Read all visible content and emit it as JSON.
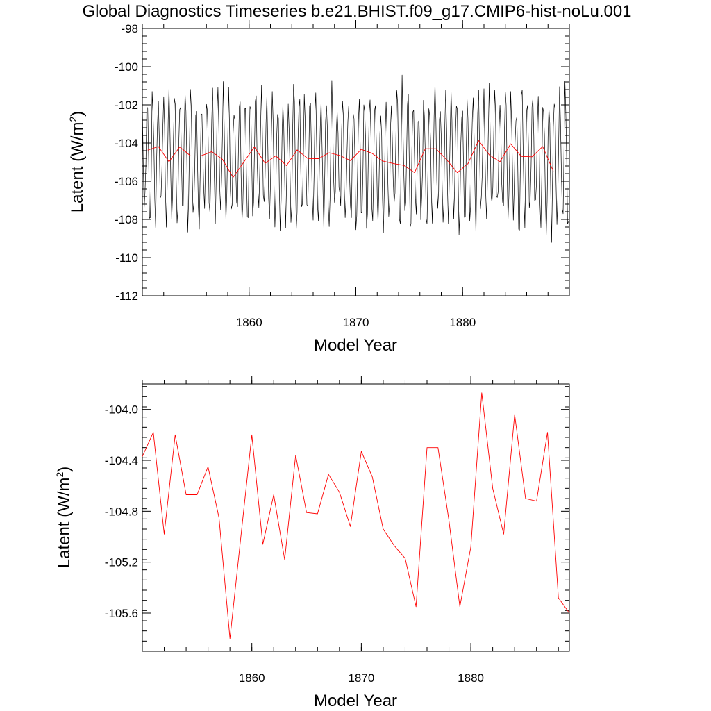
{
  "title": "Global Diagnostics Timeseries b.e21.BHIST.f09_g17.CMIP6-hist-noLu.001",
  "colors": {
    "monthly": "#000000",
    "annual": "#ff0000",
    "axis": "#000000"
  },
  "chart_data": [
    {
      "type": "line",
      "xlabel": "Model Year",
      "ylabel": "Latent (W/m2)",
      "ylabel_main": "Latent (W/m",
      "ylabel_sup": "2",
      "ylabel_close": ")",
      "xlim": [
        1850,
        1890
      ],
      "ylim": [
        -112,
        -98
      ],
      "xticks": [
        1860,
        1870,
        1880
      ],
      "xtick_labels": [
        "1860",
        "1870",
        "1880"
      ],
      "yticks": [
        -112,
        -110,
        -108,
        -106,
        -104,
        -102,
        -100,
        -98
      ],
      "ytick_labels": [
        "-112",
        "-110",
        "-108",
        "-106",
        "-104",
        "-102",
        "-100",
        "-98"
      ],
      "series": [
        {
          "name": "monthly",
          "color": "#000000",
          "generated": "seasonal cycle: mean -104.8, amplitude ~3.2 W/m2, 12 samples per year, 1850-1890",
          "x": [],
          "values": []
        },
        {
          "name": "annual",
          "color": "#ff0000",
          "x": [
            1850.5,
            1851.5,
            1852.5,
            1853.5,
            1854.5,
            1855.5,
            1856.5,
            1857.5,
            1858.5,
            1859.5,
            1860.5,
            1861.5,
            1862.5,
            1863.5,
            1864.5,
            1865.5,
            1866.5,
            1867.5,
            1868.5,
            1869.5,
            1870.5,
            1871.5,
            1872.5,
            1873.5,
            1874.5,
            1875.5,
            1876.5,
            1877.5,
            1878.5,
            1879.5,
            1880.5,
            1881.5,
            1882.5,
            1883.5,
            1884.5,
            1885.5,
            1886.5,
            1887.5,
            1888.5
          ],
          "values": [
            -104.37,
            -104.18,
            -104.98,
            -104.2,
            -104.67,
            -104.67,
            -104.45,
            -104.85,
            -105.8,
            -105.0,
            -104.2,
            -105.06,
            -104.67,
            -105.18,
            -104.36,
            -104.81,
            -104.82,
            -104.51,
            -104.65,
            -104.92,
            -104.33,
            -104.53,
            -104.94,
            -105.07,
            -105.17,
            -105.55,
            -104.3,
            -104.3,
            -104.87,
            -105.55,
            -105.08,
            -103.87,
            -104.62,
            -104.98,
            -104.04,
            -104.7,
            -104.72,
            -104.18,
            -105.48
          ]
        }
      ]
    },
    {
      "type": "line",
      "xlabel": "Model Year",
      "ylabel": "Latent (W/m2)",
      "ylabel_main": "Latent (W/m",
      "ylabel_sup": "2",
      "ylabel_close": ")",
      "xlim": [
        1850,
        1889
      ],
      "ylim": [
        -105.9,
        -103.8
      ],
      "xticks": [
        1860,
        1870,
        1880
      ],
      "xtick_labels": [
        "1860",
        "1870",
        "1880"
      ],
      "yticks": [
        -105.6,
        -105.2,
        -104.8,
        -104.4,
        -104.0
      ],
      "ytick_labels": [
        "-105.6",
        "-105.2",
        "-104.8",
        "-104.4",
        "-104.0"
      ],
      "series": [
        {
          "name": "annual",
          "color": "#ff0000",
          "x": [
            1850.0,
            1851.0,
            1852.0,
            1853.0,
            1854.0,
            1855.0,
            1856.0,
            1857.0,
            1858.0,
            1859.0,
            1860.0,
            1861.0,
            1862.0,
            1863.0,
            1864.0,
            1865.0,
            1866.0,
            1867.0,
            1868.0,
            1869.0,
            1870.0,
            1871.0,
            1872.0,
            1873.0,
            1874.0,
            1875.0,
            1876.0,
            1877.0,
            1878.0,
            1879.0,
            1880.0,
            1881.0,
            1882.0,
            1883.0,
            1884.0,
            1885.0,
            1886.0,
            1887.0,
            1888.0,
            1889.0
          ],
          "values": [
            -104.37,
            -104.18,
            -104.98,
            -104.2,
            -104.67,
            -104.67,
            -104.45,
            -104.85,
            -105.8,
            -105.0,
            -104.2,
            -105.06,
            -104.67,
            -105.18,
            -104.36,
            -104.81,
            -104.82,
            -104.51,
            -104.65,
            -104.92,
            -104.33,
            -104.53,
            -104.94,
            -105.07,
            -105.17,
            -105.55,
            -104.3,
            -104.3,
            -104.87,
            -105.55,
            -105.08,
            -103.87,
            -104.62,
            -104.98,
            -104.04,
            -104.7,
            -104.72,
            -104.18,
            -105.48,
            -105.6
          ]
        }
      ]
    }
  ]
}
